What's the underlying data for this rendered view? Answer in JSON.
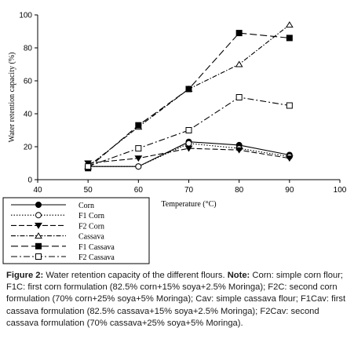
{
  "chart_data": {
    "type": "line",
    "ylabel": "Water retention capacity (%)",
    "xlabel": "Temperature (°C)",
    "x": [
      50,
      60,
      70,
      80,
      90
    ],
    "x_ticks": [
      "40",
      "50",
      "60",
      "70",
      "80",
      "90",
      "100"
    ],
    "y_ticks": [
      "0",
      "20",
      "40",
      "60",
      "80",
      "100"
    ],
    "xlim": [
      40,
      100
    ],
    "ylim": [
      0,
      100
    ],
    "series": [
      {
        "name": "Corn",
        "values": [
          8,
          8,
          23,
          21,
          15
        ],
        "dash": "",
        "marker": "circle-filled",
        "color": "#000000"
      },
      {
        "name": "F1 Corn",
        "values": [
          8,
          8,
          22,
          19,
          14
        ],
        "dash": "1.5,2",
        "marker": "circle-open",
        "color": "#000000"
      },
      {
        "name": "F2 Corn",
        "values": [
          10,
          13,
          19,
          18,
          13
        ],
        "dash": "7,3",
        "marker": "triangle-down-filled",
        "color": "#000000"
      },
      {
        "name": "Cassava",
        "values": [
          8,
          32,
          55,
          70,
          94
        ],
        "dash": "6,2,1.5,2",
        "marker": "triangle-up-open",
        "color": "#000000"
      },
      {
        "name": "F1 Cassava",
        "values": [
          7,
          33,
          55,
          89,
          86
        ],
        "dash": "9,4",
        "marker": "square-filled",
        "color": "#000000"
      },
      {
        "name": "F2 Cassava",
        "values": [
          8,
          19,
          30,
          50,
          45
        ],
        "dash": "8,3,2,3",
        "marker": "square-open",
        "color": "#000000"
      }
    ]
  },
  "caption": {
    "label": "Figure 2:",
    "text1": " Water retention capacity of the different flours. ",
    "note_label": "Note:",
    "text2": " Corn: simple corn flour; F1C: first corn formulation (82.5% corn+15% soya+2.5% Moringa); F2C: second corn formulation (70% corn+25% soya+5% Moringa); Cav: simple cassava flour; F1Cav: first cassava formulation (82.5% cassava+15% soya+2.5% Moringa); F2Cav: second cassava formulation (70% cassava+25% soya+5% Moringa)."
  }
}
